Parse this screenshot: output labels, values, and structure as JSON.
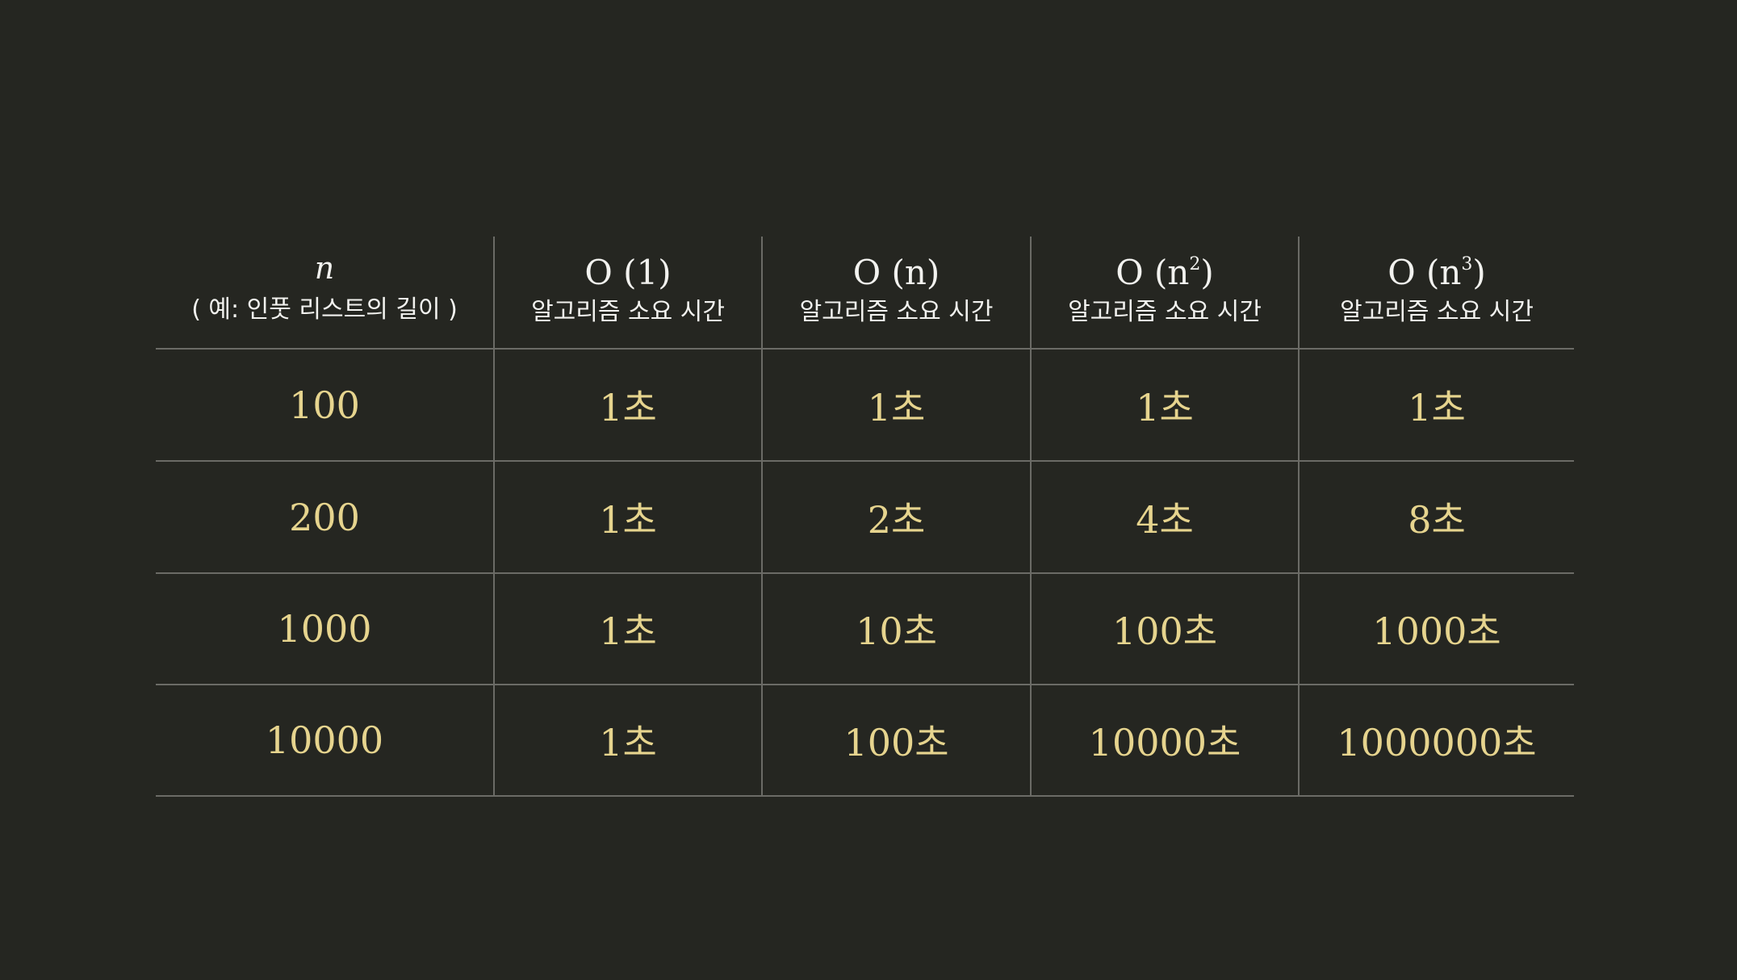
{
  "header": {
    "n_symbol": "n",
    "n_note": "( 예: 인풋 리스트의 길이 )",
    "columns": [
      {
        "func": "O (1)",
        "sup": "",
        "label": "알고리즘 소요 시간"
      },
      {
        "func": "O (n)",
        "sup": "",
        "label": "알고리즘 소요 시간"
      },
      {
        "func": "O (n",
        "sup": "2",
        "func_close": ")",
        "label": "알고리즘 소요 시간"
      },
      {
        "func": "O (n",
        "sup": "3",
        "func_close": ")",
        "label": "알고리즘 소요 시간"
      }
    ]
  },
  "rows": [
    {
      "n": "100",
      "values": [
        "1초",
        "1초",
        "1초",
        "1초"
      ]
    },
    {
      "n": "200",
      "values": [
        "1초",
        "2초",
        "4초",
        "8초"
      ]
    },
    {
      "n": "1000",
      "values": [
        "1초",
        "10초",
        "100초",
        "1000초"
      ]
    },
    {
      "n": "10000",
      "values": [
        "1초",
        "100초",
        "10000초",
        "1000000초"
      ]
    }
  ],
  "colors": {
    "background": "#252621",
    "header_text": "#f2f2ef",
    "value_text": "#e6d48e",
    "grid_line": "#6b6b66"
  }
}
